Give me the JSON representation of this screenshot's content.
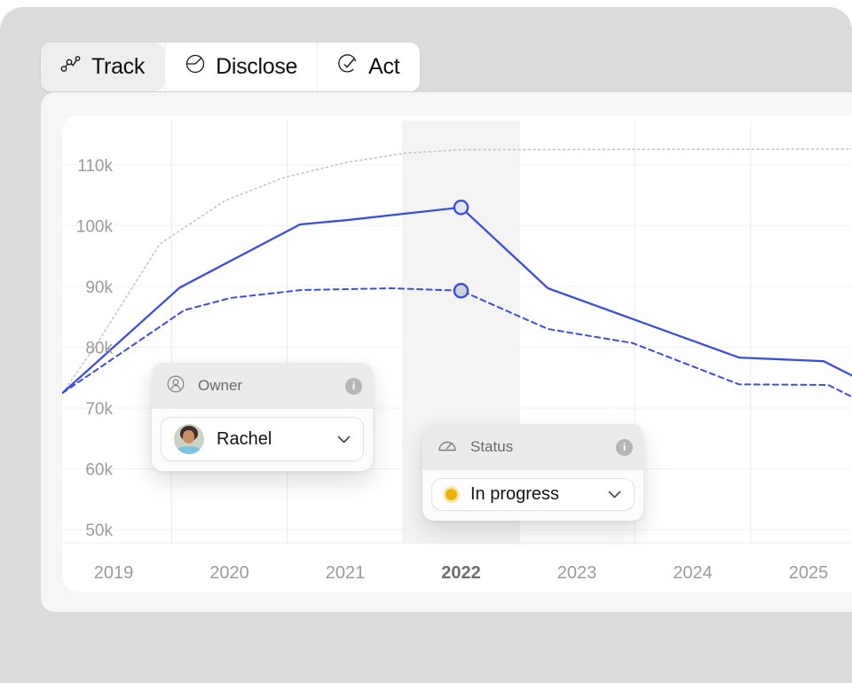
{
  "tabs": [
    {
      "label": "Track",
      "icon": "track-line-chart-icon",
      "active": true
    },
    {
      "label": "Disclose",
      "icon": "disclose-pie-icon",
      "active": false
    },
    {
      "label": "Act",
      "icon": "act-target-check-icon",
      "active": false
    }
  ],
  "chart_data": {
    "type": "line",
    "x_ticks": [
      "2019",
      "2020",
      "2021",
      "2022",
      "2023",
      "2024",
      "2025"
    ],
    "highlighted_x": "2022",
    "y_ticks": [
      "50k",
      "60k",
      "70k",
      "80k",
      "90k",
      "100k",
      "110k"
    ],
    "y_unit": "k",
    "ylim": [
      48,
      115
    ],
    "grid": "horizontal + vertical midpoint gridlines, 2022 column highlighted",
    "legend": "none",
    "series": [
      {
        "name": "gray-dotted-baseline",
        "style": "dotted",
        "color": "#c6c6c6",
        "points": [
          [
            2018.56,
            72.5
          ],
          [
            2018.86,
            80.7
          ],
          [
            2019.4,
            97.0
          ],
          [
            2019.96,
            104.1
          ],
          [
            2020.47,
            107.9
          ],
          [
            2021.01,
            110.4
          ],
          [
            2021.51,
            111.9
          ],
          [
            2022,
            112.5
          ],
          [
            2025.38,
            112.6
          ]
        ],
        "values_by_year": [
          82,
          104,
          110.5,
          112.5,
          112.5,
          112.5,
          112.5
        ]
      },
      {
        "name": "blue-solid",
        "style": "solid",
        "color": "#3c4fd9",
        "points": [
          [
            2018.56,
            72.5
          ],
          [
            2019.57,
            89.8
          ],
          [
            2020.61,
            100.2
          ],
          [
            2021.01,
            100.9
          ],
          [
            2022,
            103
          ],
          [
            2022.75,
            89.7
          ],
          [
            2024.4,
            78.3
          ],
          [
            2025.13,
            77.7
          ],
          [
            2025.38,
            75.3
          ]
        ],
        "values_by_year": [
          80,
          94,
          101,
          103,
          88,
          81,
          78
        ]
      },
      {
        "name": "blue-dashed",
        "style": "dashed",
        "color": "#3c4fd9",
        "points": [
          [
            2018.56,
            72.5
          ],
          [
            2019.61,
            86.1
          ],
          [
            2020.01,
            88.1
          ],
          [
            2020.62,
            89.4
          ],
          [
            2021.39,
            89.7
          ],
          [
            2022,
            89.3
          ],
          [
            2022.75,
            83.0
          ],
          [
            2023.48,
            80.7
          ],
          [
            2024.4,
            73.9
          ],
          [
            2025.17,
            73.8
          ],
          [
            2025.38,
            71.8
          ]
        ],
        "values_by_year": [
          78,
          88,
          89.6,
          89.3,
          81.5,
          73.9,
          73.8
        ]
      }
    ],
    "markers": [
      {
        "x": 2022,
        "y": 103,
        "series": "blue-solid",
        "fill": "#e3e6f9"
      },
      {
        "x": 2022,
        "y": 89.3,
        "series": "blue-dashed",
        "fill": "#cbd3da"
      }
    ]
  },
  "owner_card": {
    "label": "Owner",
    "value": "Rachel"
  },
  "status_card": {
    "label": "Status",
    "value": "In progress",
    "dot_color": "#e9b30b"
  },
  "icons": {
    "info_glyph": "i"
  },
  "colors": {
    "accent_blue": "#3c4fd9",
    "status_yellow": "#e9b30b",
    "surface_gray": "#dbdbdb",
    "panel_gray": "#f6f6f6"
  }
}
